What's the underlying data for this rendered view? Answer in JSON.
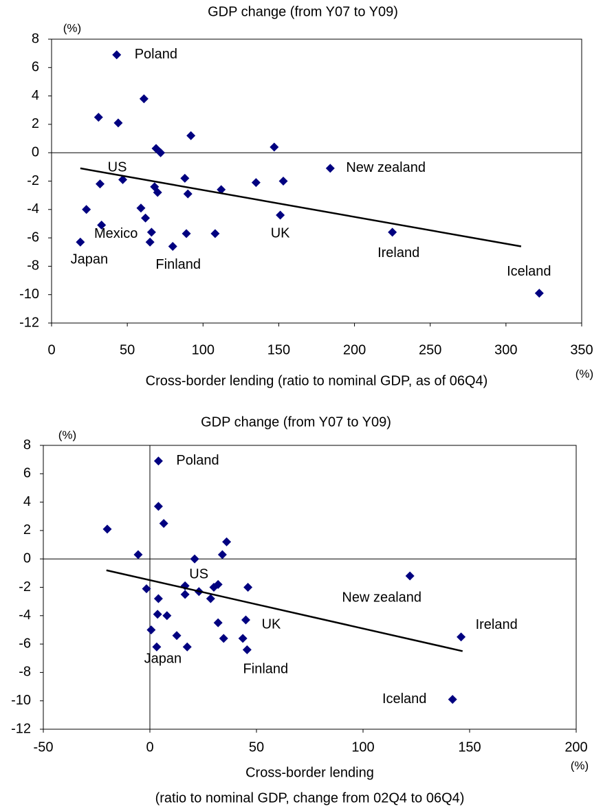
{
  "chart_data": [
    {
      "type": "scatter",
      "title": "GDP change (from Y07 to Y09)",
      "y_unit": "(%)",
      "x_unit": "(%)",
      "xlabel": [
        "Cross-border lending (ratio to nominal GDP, as of 06Q4)"
      ],
      "xlim": [
        0,
        350
      ],
      "xticks": [
        0,
        50,
        100,
        150,
        200,
        250,
        300,
        350
      ],
      "ylim": [
        -12,
        8
      ],
      "yticks": [
        -12,
        -10,
        -8,
        -6,
        -4,
        -2,
        0,
        2,
        4,
        6,
        8
      ],
      "series": [
        {
          "color": "#000080",
          "x": [
            43,
            61,
            31,
            44,
            92,
            69,
            72,
            147,
            184,
            47,
            32,
            68,
            70,
            88,
            90,
            112,
            135,
            153,
            151,
            23,
            59,
            62,
            33,
            66,
            65,
            89,
            108,
            80,
            19,
            225,
            322
          ],
          "values": [
            6.9,
            3.8,
            2.5,
            2.1,
            1.2,
            0.3,
            0.0,
            0.4,
            -1.1,
            -1.9,
            -2.2,
            -2.4,
            -2.8,
            -1.8,
            -2.9,
            -2.6,
            -2.1,
            -2.0,
            -4.4,
            -4.0,
            -3.9,
            -4.6,
            -5.1,
            -5.6,
            -6.3,
            -5.7,
            -5.7,
            -6.6,
            -6.3,
            -5.6,
            -9.9
          ],
          "labels": [
            "Poland",
            null,
            null,
            null,
            null,
            null,
            null,
            null,
            "New zealand",
            "US",
            null,
            null,
            null,
            null,
            null,
            null,
            null,
            null,
            "UK",
            null,
            null,
            null,
            "Mexico",
            null,
            null,
            null,
            null,
            "Finland",
            "Japan",
            "Ireland",
            "Iceland"
          ]
        }
      ],
      "trendline": {
        "color": "#000000",
        "x": [
          19,
          310
        ],
        "values": [
          -1.1,
          -6.6
        ]
      }
    },
    {
      "type": "scatter",
      "title": "GDP change (from Y07 to Y09)",
      "y_unit": "(%)",
      "x_unit": "(%)",
      "xlabel": [
        "Cross-border lending",
        "(ratio to nominal GDP, change from 02Q4 to 06Q4)"
      ],
      "xlim": [
        -50,
        200
      ],
      "xticks": [
        -50,
        0,
        50,
        100,
        150,
        200
      ],
      "ylim": [
        -12,
        8
      ],
      "yticks": [
        -12,
        -10,
        -8,
        -6,
        -4,
        -2,
        0,
        2,
        4,
        6,
        8
      ],
      "series": [
        {
          "color": "#000080",
          "x": [
            4,
            4,
            6.5,
            -20,
            -5.5,
            36,
            34,
            21,
            122,
            16.5,
            23,
            16.5,
            32,
            30,
            28.5,
            46,
            -1.6,
            4,
            3.6,
            8,
            32,
            45,
            0.6,
            12.6,
            34.6,
            43.6,
            3.2,
            17.5,
            45.6,
            146,
            142
          ],
          "values": [
            6.9,
            3.7,
            2.5,
            2.1,
            0.3,
            1.2,
            0.3,
            0.0,
            -1.2,
            -1.9,
            -2.3,
            -2.5,
            -1.8,
            -2.0,
            -2.8,
            -2.0,
            -2.1,
            -2.8,
            -3.9,
            -4.0,
            -4.5,
            -4.3,
            -5.0,
            -5.4,
            -5.6,
            -5.6,
            -6.2,
            -6.2,
            -6.4,
            -5.5,
            -9.9
          ],
          "labels": [
            "Poland",
            null,
            null,
            null,
            null,
            null,
            null,
            null,
            "New zealand",
            "US",
            null,
            null,
            null,
            null,
            null,
            null,
            null,
            null,
            null,
            null,
            null,
            "UK",
            null,
            null,
            null,
            null,
            "Japan",
            null,
            "Finland",
            "Ireland",
            "Iceland"
          ]
        }
      ],
      "trendline": {
        "color": "#000000",
        "x": [
          -20.4,
          146.7
        ],
        "values": [
          -0.8,
          -6.5
        ]
      }
    }
  ]
}
